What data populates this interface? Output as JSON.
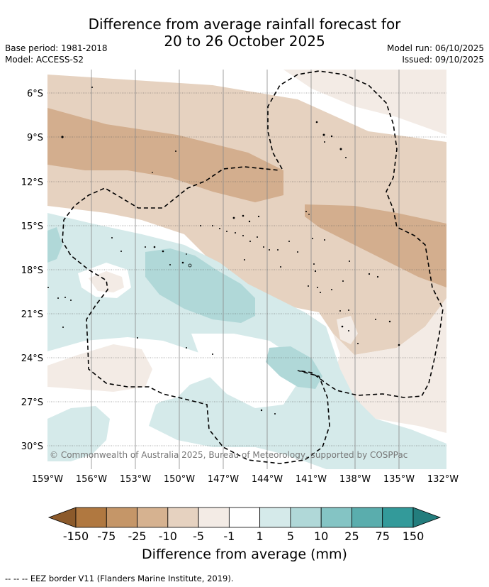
{
  "title_line1": "Difference from average rainfall forecast for",
  "title_line2": "20 to 26 October 2025",
  "base_period": "Base period: 1981-2018",
  "model": "Model: ACCESS-S2",
  "model_run": "Model run: 06/10/2025",
  "issued": "Issued: 09/10/2025",
  "lat_labels": [
    "6°S",
    "9°S",
    "12°S",
    "15°S",
    "18°S",
    "21°S",
    "24°S",
    "27°S",
    "30°S"
  ],
  "lon_labels": [
    "159°W",
    "156°W",
    "153°W",
    "150°W",
    "147°W",
    "144°W",
    "141°W",
    "138°W",
    "135°W",
    "132°W"
  ],
  "colorbar": {
    "ticks": [
      "-150",
      "-75",
      "-25",
      "-10",
      "-5",
      "-1",
      "1",
      "5",
      "10",
      "25",
      "75",
      "150"
    ],
    "colors": [
      "#8c5a2b",
      "#b07840",
      "#c59668",
      "#d6b290",
      "#e6d2c0",
      "#f3ebe5",
      "#ffffff",
      "#d5eaea",
      "#b0d8d8",
      "#84c4c4",
      "#5aadad",
      "#339a9a",
      "#237d7d"
    ],
    "title": "Difference from average (mm)"
  },
  "copyright": "© Commonwealth of Australia 2025, Bureau of Meteorology, supported by COSPPac",
  "footnote": "--  --  -- EEZ border V11 (Flanders Marine Institute, 2019)."
}
